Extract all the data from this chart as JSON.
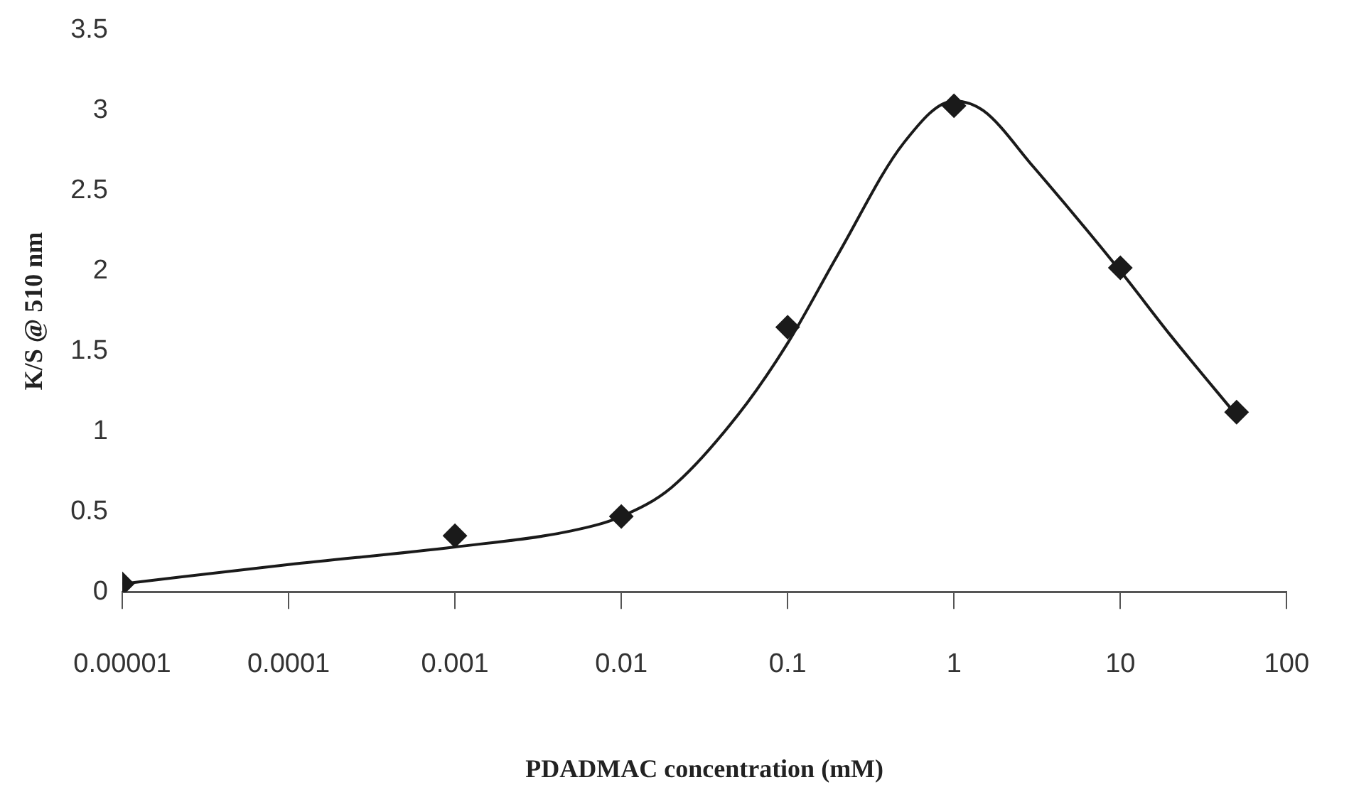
{
  "chart_data": {
    "type": "scatter",
    "xlabel": "PDADMAC concentration (mM)",
    "ylabel": "K/S @ 510 nm",
    "log": "x",
    "xlim": [
      1e-05,
      100
    ],
    "xticks": [
      {
        "value": 1e-05,
        "label": "0.00001"
      },
      0.0001,
      0.001,
      0.01,
      0.1,
      1,
      10,
      100
    ],
    "ylim": [
      0,
      3.5
    ],
    "yticks": [
      0,
      0.5,
      1,
      1.5,
      2,
      2.5,
      3,
      3.5
    ],
    "grid": false,
    "legend": false,
    "series": [
      {
        "type": "scatter",
        "color": "#1a1a1a",
        "marker": "diamond",
        "x": [
          1e-05,
          0.001,
          0.01,
          0.1,
          1,
          10,
          50
        ],
        "values": [
          0.05,
          0.35,
          0.47,
          1.65,
          3.03,
          2.02,
          1.12
        ]
      },
      {
        "type": "line",
        "color": "#1a1a1a",
        "marker": "none",
        "line_style": "solid",
        "x": [
          1e-05,
          0.0001,
          0.001,
          0.005,
          0.01,
          0.02,
          0.05,
          0.1,
          0.2,
          0.5,
          1,
          1.5,
          3,
          10,
          20,
          50
        ],
        "values": [
          0.05,
          0.17,
          0.28,
          0.38,
          0.47,
          0.65,
          1.1,
          1.55,
          2.1,
          2.8,
          3.06,
          3.0,
          2.65,
          2.0,
          1.6,
          1.1
        ]
      }
    ]
  }
}
